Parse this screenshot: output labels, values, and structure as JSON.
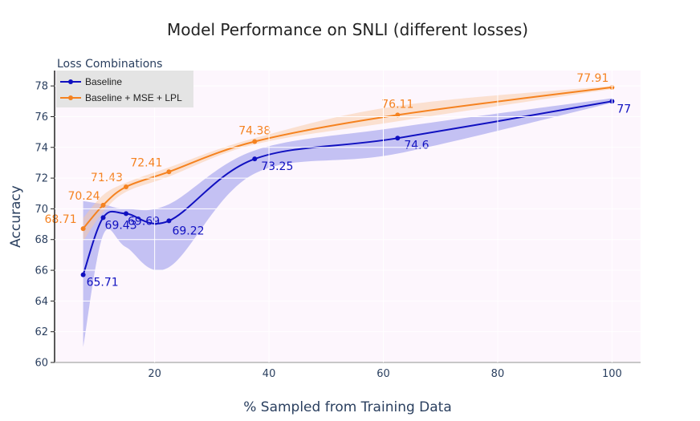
{
  "chart_data": {
    "type": "line",
    "title": "Model Performance on SNLI (different losses)",
    "xlabel": "% Sampled from Training Data",
    "ylabel": "Accuracy",
    "xlim": [
      2.5,
      105
    ],
    "ylim": [
      60,
      79
    ],
    "xticks": [
      20,
      40,
      60,
      80,
      100
    ],
    "yticks": [
      60,
      62,
      64,
      66,
      68,
      70,
      72,
      74,
      76,
      78
    ],
    "legend_title": "Loss Combinations",
    "legend_position": "top-left",
    "series": [
      {
        "name": "Baseline",
        "color": "#1010c0",
        "band_color": "#8c8cea",
        "x": [
          7.5,
          11,
          15,
          22.5,
          37.5,
          62.5,
          100
        ],
        "values": [
          65.71,
          69.43,
          69.69,
          69.22,
          73.25,
          74.6,
          77
        ],
        "labels": [
          "65.71",
          "69.43",
          "69.69",
          "69.22",
          "73.25",
          "74.6",
          "77"
        ],
        "upper": [
          70.5,
          70.3,
          70.0,
          70.3,
          73.8,
          75.3,
          77.2
        ],
        "lower": [
          61.0,
          68.3,
          67.5,
          66.2,
          72.3,
          73.6,
          76.9
        ]
      },
      {
        "name": "Baseline + MSE + LPL",
        "color": "#f58220",
        "band_color": "#f9c9a3",
        "x": [
          7.5,
          11,
          15,
          22.5,
          37.5,
          62.5,
          100
        ],
        "values": [
          68.71,
          70.24,
          71.43,
          72.41,
          74.38,
          76.11,
          77.91
        ],
        "labels": [
          "68.71",
          "70.24",
          "71.43",
          "72.41",
          "74.38",
          "76.11",
          "77.91"
        ],
        "upper": [
          69.4,
          70.9,
          71.7,
          72.7,
          74.6,
          76.7,
          78.0
        ],
        "lower": [
          67.9,
          69.8,
          71.1,
          72.1,
          74.2,
          75.7,
          77.8
        ]
      }
    ]
  }
}
